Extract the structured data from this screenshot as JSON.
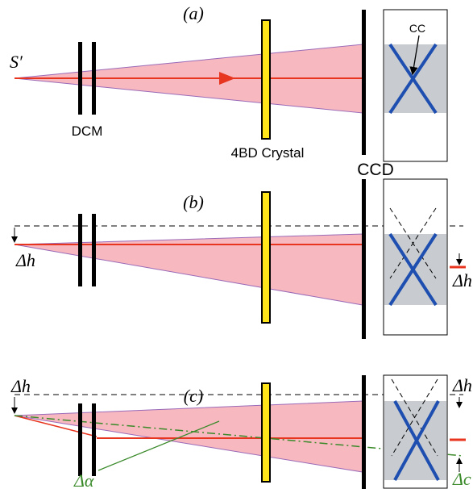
{
  "panels": [
    {
      "label": "(a)",
      "source": "S′",
      "dcm": "DCM",
      "crystal": "4BD Crystal",
      "detector": "CCD",
      "crossing": "CC"
    },
    {
      "label": "(b)",
      "offset_left": "Δh",
      "offset_right": "Δh"
    },
    {
      "label": "(c)",
      "offset_left": "Δh",
      "offset_right": "Δh",
      "shift": "Δc",
      "angle": "Δα"
    }
  ]
}
